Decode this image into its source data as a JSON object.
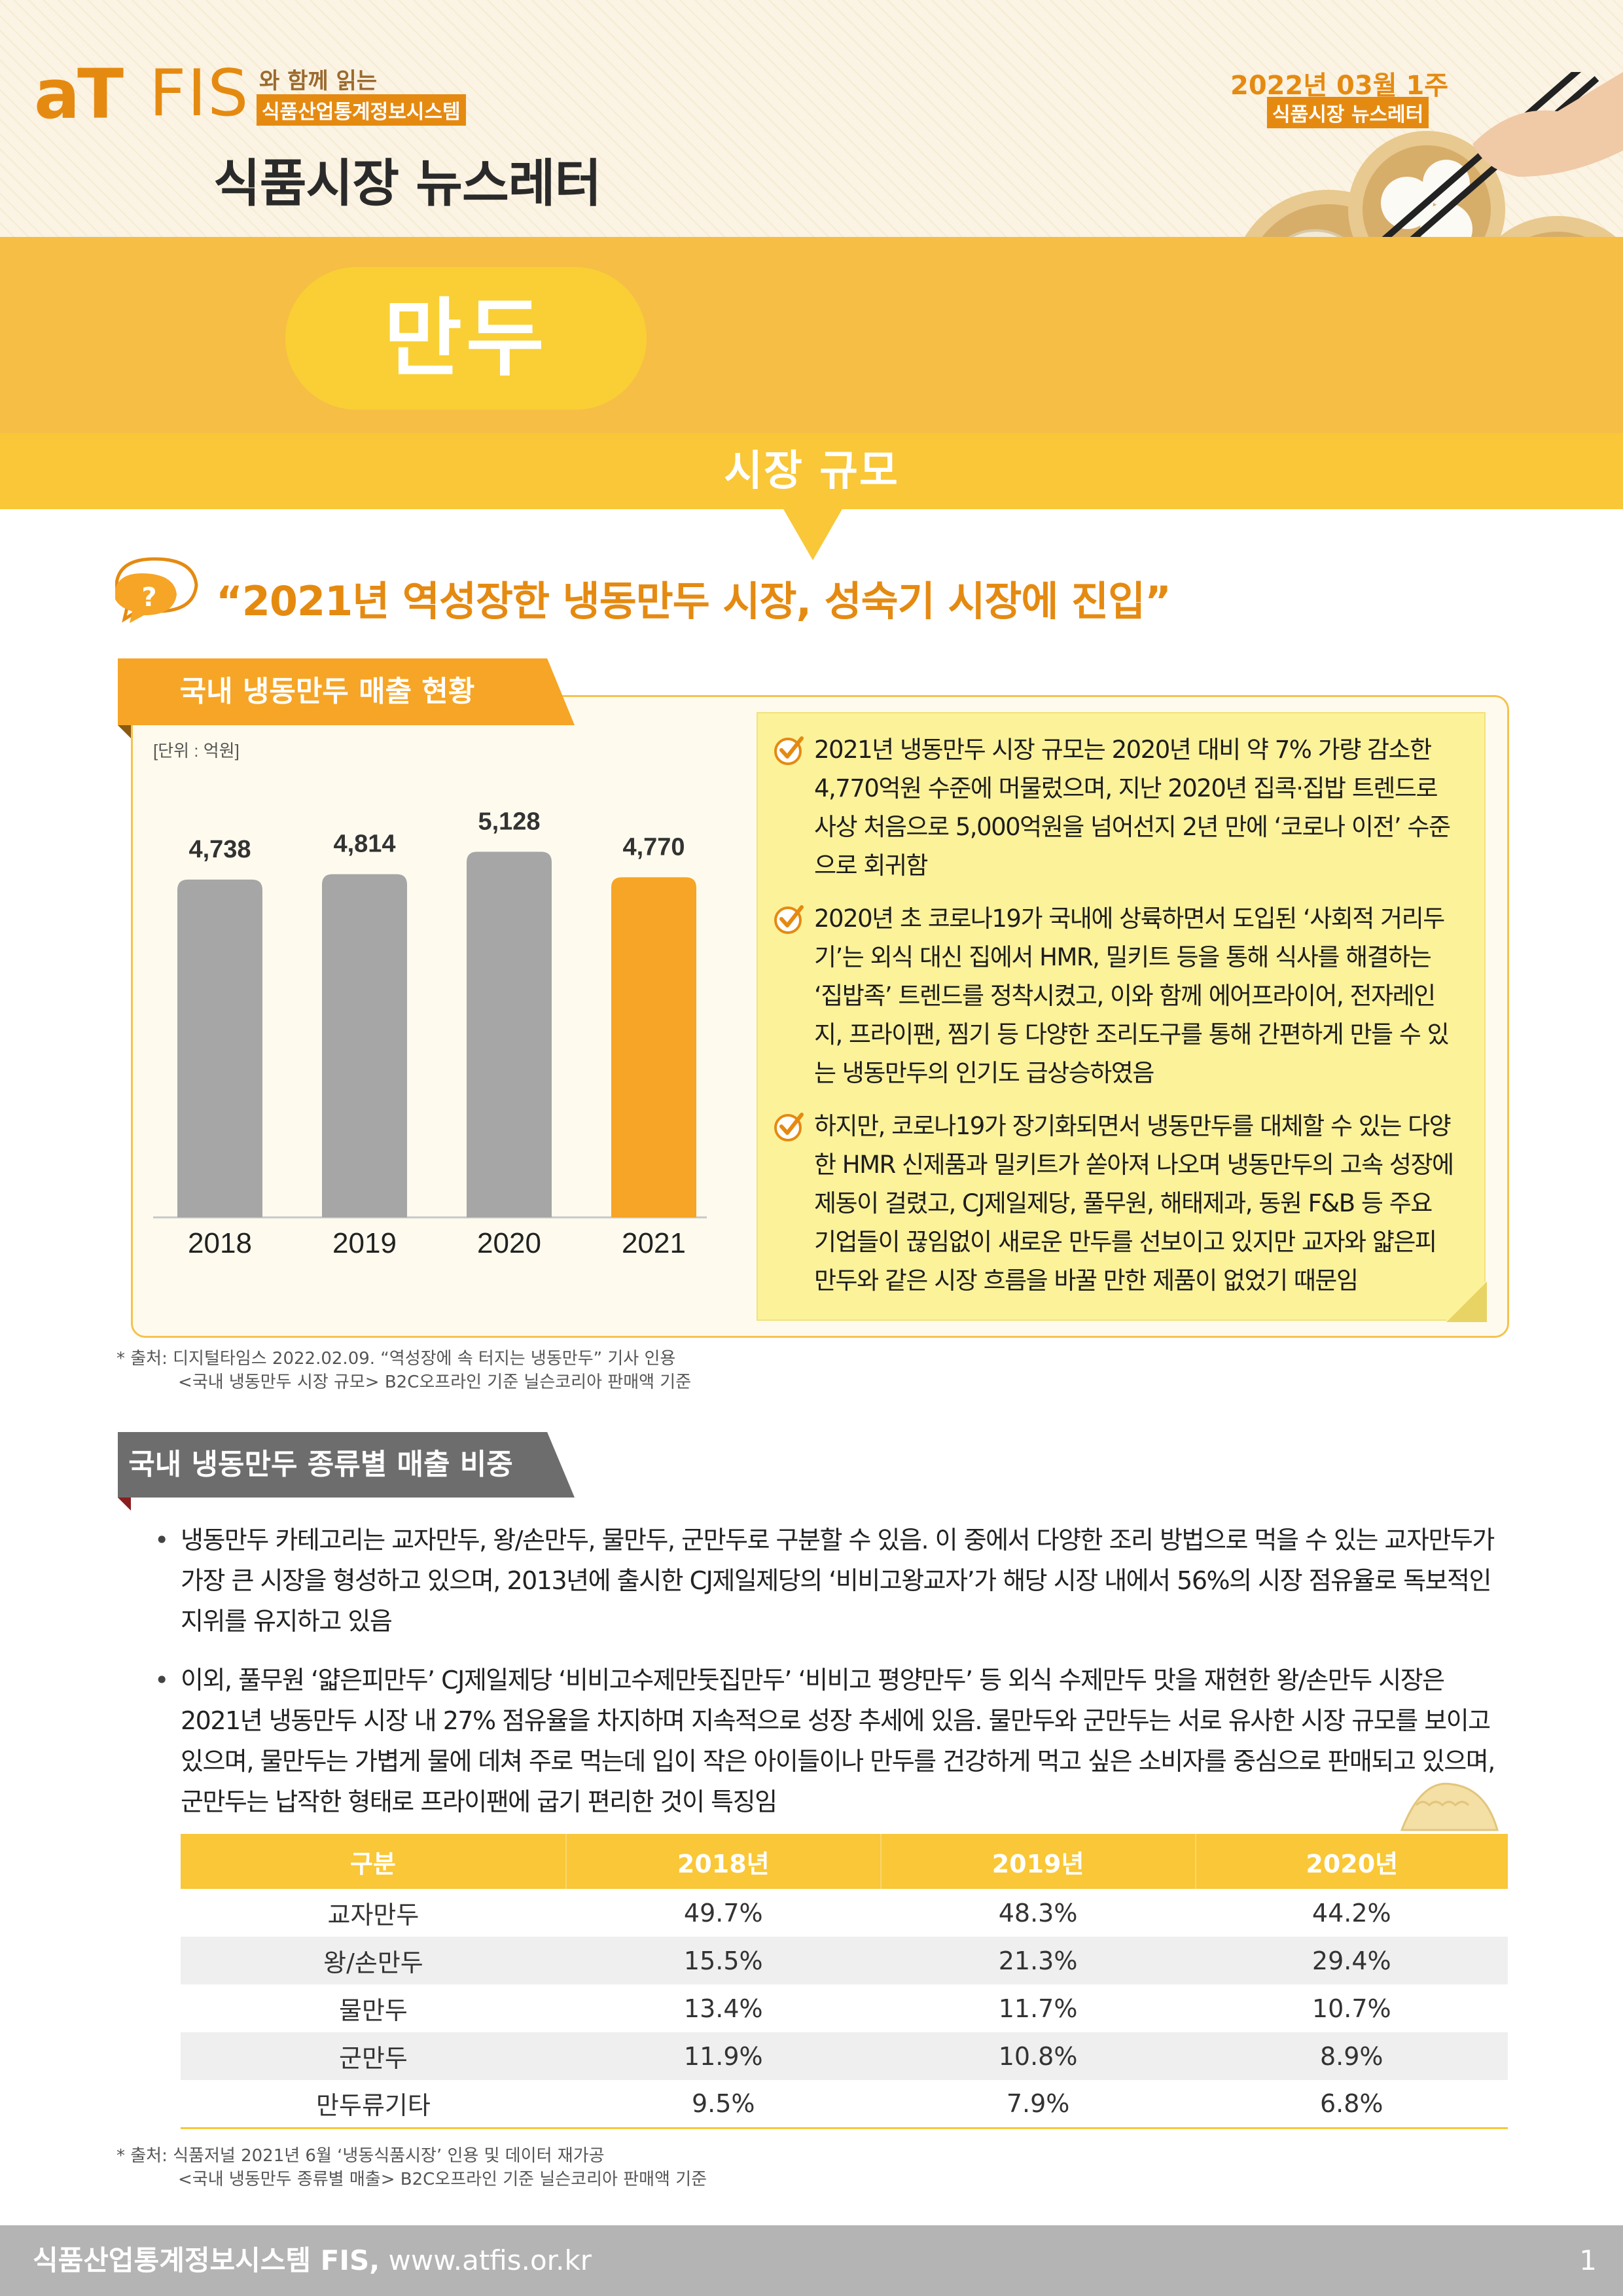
{
  "header": {
    "logo_at": "aT",
    "logo_fis": "FIS",
    "logo_tagline_1": "와 함께 읽는",
    "logo_tagline_2": "식품산업통계정보시스템",
    "newsletter_title": "식품시장 뉴스레터",
    "issue_date": "2022년 03월 1주",
    "issue_tag": "식품시장 뉴스레터",
    "topic": "만두"
  },
  "section": {
    "title": "시장 규모",
    "headline": "“2021년 역성장한 냉동만두 시장, 성숙기 시장에 진입”"
  },
  "sales_chart": {
    "tab_title": "국내 냉동만두 매출 현황",
    "unit_label": "[단위 : 억원]",
    "value_labels": [
      "4,738",
      "4,814",
      "5,128",
      "4,770"
    ]
  },
  "chart_data": {
    "type": "bar",
    "title": "국내 냉동만두 매출 현황",
    "ylabel": "[단위 : 억원]",
    "categories": [
      "2018",
      "2019",
      "2020",
      "2021"
    ],
    "values": [
      4738,
      4814,
      5128,
      4770
    ],
    "colors": [
      "#a6a6a6",
      "#a6a6a6",
      "#a6a6a6",
      "#f6a526"
    ],
    "ylim": [
      0,
      5600
    ],
    "grid": false,
    "legend": "none"
  },
  "notes": [
    "2021년 냉동만두 시장 규모는 2020년 대비 약 7% 가량 감소한 4,770억원 수준에 머물렀으며, 지난 2020년 집콕·집밥 트렌드로 사상 처음으로 5,000억원을 넘어선지 2년 만에 ‘코로나 이전’ 수준으로 회귀함",
    "2020년 초 코로나19가 국내에 상륙하면서 도입된 ‘사회적 거리두기’는 외식 대신 집에서 HMR, 밀키트 등을 통해 식사를 해결하는 ‘집밥족’ 트렌드를 정착시켰고, 이와 함께 에어프라이어, 전자레인지, 프라이팬, 찜기 등 다양한 조리도구를 통해 간편하게 만들 수 있는 냉동만두의 인기도 급상승하였음",
    "하지만, 코로나19가 장기화되면서 냉동만두를 대체할 수 있는 다양한 HMR 신제품과 밀키트가 쏟아져 나오며 냉동만두의 고속 성장에 제동이 걸렸고, CJ제일제당, 풀무원, 해태제과, 동원 F&B 등 주요 기업들이 끊임없이 새로운 만두를 선보이고 있지만 교자와 얇은피 만두와 같은 시장 흐름을 바꿀 만한 제품이 없었기 때문임"
  ],
  "source1": {
    "line1": "* 출처: 디지털타임스 2022.02.09. “역성장에 속 터지는 냉동만두” 기사 인용",
    "line2": "<국내 냉동만두 시장 규모> B2C오프라인 기준 닐슨코리아 판매액 기준"
  },
  "share_section": {
    "tab_title": "국내 냉동만두 종류별 매출 비중",
    "paragraphs": [
      "냉동만두 카테고리는 교자만두, 왕/손만두, 물만두, 군만두로 구분할 수 있음. 이 중에서 다양한 조리 방법으로 먹을 수 있는 교자만두가 가장 큰 시장을 형성하고 있으며, 2013년에 출시한 CJ제일제당의 ‘비비고왕교자’가 해당 시장 내에서 56%의 시장 점유율로 독보적인 지위를 유지하고 있음",
      "이외, 풀무원 ‘얇은피만두’ CJ제일제당 ‘비비고수제만둣집만두’ ‘비비고 평양만두’ 등 외식 수제만두 맛을 재현한 왕/손만두 시장은 2021년 냉동만두 시장 내 27% 점유율을 차지하며 지속적으로 성장 추세에 있음. 물만두와 군만두는 서로 유사한 시장 규모를 보이고 있으며, 물만두는 가볍게 물에 데쳐 주로 먹는데 입이 작은 아이들이나 만두를 건강하게 먹고 싶은 소비자를 중심으로 판매되고 있으며, 군만두는 납작한 형태로 프라이팬에 굽기 편리한 것이 특징임"
    ],
    "table": {
      "headers": [
        "구분",
        "2018년",
        "2019년",
        "2020년"
      ],
      "rows": [
        [
          "교자만두",
          "49.7%",
          "48.3%",
          "44.2%"
        ],
        [
          "왕/손만두",
          "15.5%",
          "21.3%",
          "29.4%"
        ],
        [
          "물만두",
          "13.4%",
          "11.7%",
          "10.7%"
        ],
        [
          "군만두",
          "11.9%",
          "10.8%",
          "8.9%"
        ],
        [
          "만두류기타",
          "9.5%",
          "7.9%",
          "6.8%"
        ]
      ]
    }
  },
  "source2": {
    "line1": "* 출처: 식품저널  2021년 6월 ‘냉동식품시장’ 인용 및 데이터 재가공",
    "line2": "<국내 냉동만두 종류별 매출> B2C오프라인 기준 닐슨코리아 판매액 기준"
  },
  "footer": {
    "org": "식품산업통계정보시스템 FIS,",
    "url": "www.atfis.or.kr",
    "page": "1"
  },
  "colors": {
    "accent_orange": "#e58a11",
    "band_yellow": "#f9c737",
    "bar_gray": "#a6a6a6",
    "bar_highlight": "#f6a526",
    "note_yellow": "#fcf29a"
  }
}
